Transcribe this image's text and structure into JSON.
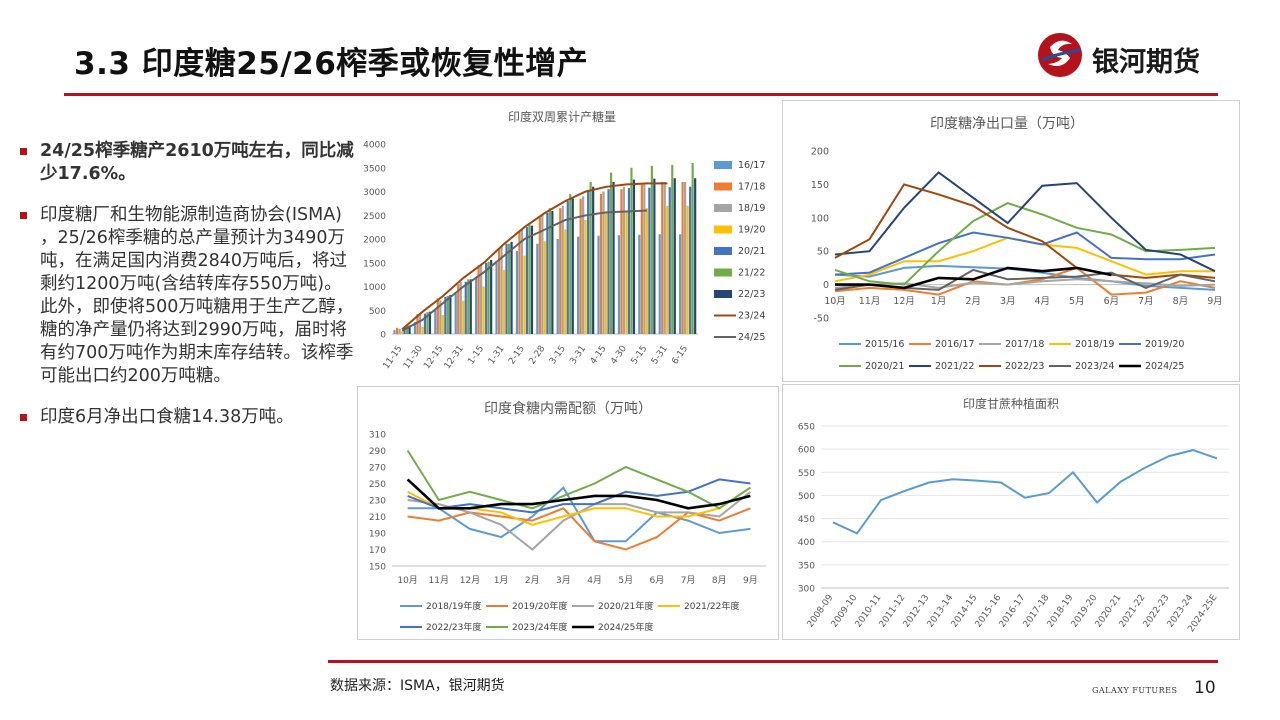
{
  "header": {
    "title": "3.3 印度糖25/26榨季或恢复性增产",
    "logo_text": "银河期货"
  },
  "bullets": [
    "24/25榨季糖产2610万吨左右，同比减少17.6%。",
    "印度糖厂和生物能源制造商协会(ISMA) ，25/26榨季糖的总产量预计为3490万吨，在满足国内消费2840万吨后，将过剩约1200万吨(含结转库存550万吨)。此外，即使将500万吨糖用于生产乙醇，糖的净产量仍将达到2990万吨，届时将有约700万吨作为期末库存结转。该榨季可能出口约200万吨糖。",
    "印度6月净出口食糖14.38万吨。"
  ],
  "footer": {
    "source": "数据来源：ISMA，银河期货",
    "brand": "GALAXY FUTURES",
    "page": "10"
  },
  "chart_data": [
    {
      "type": "bar",
      "title": "印度双周累计产糖量",
      "xlabel": "",
      "ylabel": "",
      "ylim": [
        0,
        4000
      ],
      "yticks": [
        0,
        500,
        1000,
        1500,
        2000,
        2500,
        3000,
        3500,
        4000
      ],
      "categories": [
        "11-15",
        "11-30",
        "12-15",
        "12-31",
        "1-15",
        "1-31",
        "2-15",
        "2-28",
        "3-15",
        "3-31",
        "4-15",
        "4-30",
        "5-15",
        "5-31",
        "6-15"
      ],
      "legend_position": "right",
      "series": [
        {
          "name": "16/17",
          "type": "bar",
          "color": "#5b9bd5",
          "values": [
            80,
            250,
            500,
            850,
            1200,
            1500,
            1750,
            1900,
            2000,
            2050,
            2070,
            2080,
            2090,
            2100,
            2100
          ]
        },
        {
          "name": "17/18",
          "type": "bar",
          "color": "#ed7d31",
          "values": [
            130,
            420,
            750,
            1050,
            1450,
            1800,
            2150,
            2450,
            2650,
            2850,
            2950,
            3050,
            3150,
            3200,
            3200
          ]
        },
        {
          "name": "18/19",
          "type": "bar",
          "color": "#a5a5a5",
          "values": [
            110,
            400,
            710,
            1100,
            1480,
            1850,
            2200,
            2500,
            2700,
            2900,
            3000,
            3100,
            3150,
            3200,
            3200
          ]
        },
        {
          "name": "19/20",
          "type": "bar",
          "color": "#ffc000",
          "values": [
            50,
            150,
            400,
            700,
            1000,
            1350,
            1650,
            1950,
            2200,
            2400,
            2550,
            2600,
            2650,
            2700,
            2700
          ]
        },
        {
          "name": "20/21",
          "type": "bar",
          "color": "#4472c4",
          "values": [
            140,
            430,
            780,
            1100,
            1500,
            1900,
            2250,
            2550,
            2800,
            3000,
            3050,
            3070,
            3080,
            3090,
            3100
          ]
        },
        {
          "name": "21/22",
          "type": "bar",
          "color": "#70ad47",
          "values": [
            180,
            460,
            800,
            1150,
            1520,
            1900,
            2300,
            2650,
            2950,
            3200,
            3400,
            3500,
            3540,
            3560,
            3600
          ]
        },
        {
          "name": "22/23",
          "type": "bar",
          "color": "#264478",
          "values": [
            180,
            470,
            820,
            1150,
            1560,
            1940,
            2280,
            2590,
            2850,
            3100,
            3200,
            3250,
            3270,
            3280,
            3280
          ]
        },
        {
          "name": "23/24",
          "type": "line",
          "color": "#9e480e",
          "values": [
            100,
            470,
            800,
            1180,
            1500,
            1900,
            2250,
            2550,
            2800,
            3000,
            3100,
            3150,
            3170,
            3170,
            null
          ]
        },
        {
          "name": "24/25",
          "type": "line",
          "color": "#636363",
          "values": [
            70,
            300,
            650,
            1000,
            1300,
            1650,
            2000,
            2200,
            2400,
            2500,
            2560,
            2580,
            2600,
            null,
            null
          ]
        }
      ]
    },
    {
      "type": "line",
      "title": "印度糖净出口量（万吨）",
      "xlabel": "",
      "ylabel": "",
      "ylim": [
        -50,
        200
      ],
      "yticks": [
        -50,
        0,
        50,
        100,
        150,
        200
      ],
      "categories": [
        "10月",
        "11月",
        "12月",
        "1月",
        "2月",
        "3月",
        "4月",
        "5月",
        "6月",
        "7月",
        "8月",
        "9月"
      ],
      "legend_position": "bottom",
      "series": [
        {
          "name": "2015/16",
          "color": "#5b9bd5",
          "values": [
            15,
            12,
            25,
            28,
            26,
            24,
            18,
            10,
            5,
            -2,
            -5,
            -8
          ]
        },
        {
          "name": "2016/17",
          "color": "#ed7d31",
          "values": [
            -10,
            -5,
            -8,
            -15,
            5,
            0,
            8,
            25,
            -15,
            -12,
            5,
            -5
          ]
        },
        {
          "name": "2017/18",
          "color": "#a5a5a5",
          "values": [
            -5,
            0,
            2,
            -5,
            3,
            0,
            5,
            8,
            5,
            2,
            -2,
            0
          ]
        },
        {
          "name": "2018/19",
          "color": "#ffc000",
          "values": [
            5,
            15,
            35,
            35,
            50,
            70,
            60,
            55,
            35,
            15,
            20,
            20
          ]
        },
        {
          "name": "2019/20",
          "color": "#4472c4",
          "values": [
            15,
            18,
            40,
            62,
            78,
            70,
            60,
            78,
            40,
            38,
            38,
            45
          ]
        },
        {
          "name": "2020/21",
          "color": "#70ad47",
          "values": [
            22,
            5,
            0,
            50,
            95,
            122,
            105,
            85,
            75,
            50,
            52,
            55
          ]
        },
        {
          "name": "2021/22",
          "color": "#264478",
          "values": [
            45,
            50,
            115,
            168,
            130,
            92,
            148,
            152,
            100,
            52,
            45,
            20
          ]
        },
        {
          "name": "2022/23",
          "color": "#9e480e",
          "values": [
            40,
            68,
            150,
            135,
            118,
            85,
            65,
            25,
            15,
            10,
            15,
            10
          ]
        },
        {
          "name": "2023/24",
          "color": "#636363",
          "values": [
            -8,
            0,
            -5,
            -8,
            22,
            8,
            10,
            12,
            18,
            -5,
            15,
            5
          ]
        },
        {
          "name": "2024/25",
          "color": "#000000",
          "values": [
            0,
            0,
            -5,
            10,
            8,
            25,
            20,
            25,
            14.38,
            null,
            null,
            null
          ]
        }
      ]
    },
    {
      "type": "line",
      "title": "印度食糖内需配额（万吨）",
      "xlabel": "",
      "ylabel": "",
      "ylim": [
        150,
        310
      ],
      "yticks": [
        150,
        170,
        190,
        210,
        230,
        250,
        270,
        290,
        310
      ],
      "categories": [
        "10月",
        "11月",
        "12月",
        "1月",
        "2月",
        "3月",
        "4月",
        "5月",
        "6月",
        "7月",
        "8月",
        "9月"
      ],
      "legend_position": "bottom",
      "series": [
        {
          "name": "2018/19年度",
          "color": "#5b9bd5",
          "values": [
            220,
            220,
            195,
            185,
            210,
            245,
            180,
            180,
            215,
            205,
            190,
            195
          ]
        },
        {
          "name": "2019/20年度",
          "color": "#ed7d31",
          "values": [
            210,
            205,
            215,
            210,
            205,
            220,
            180,
            170,
            185,
            215,
            205,
            220
          ]
        },
        {
          "name": "2020/21年度",
          "color": "#a5a5a5",
          "values": [
            230,
            225,
            215,
            200,
            170,
            205,
            225,
            225,
            215,
            215,
            210,
            240
          ]
        },
        {
          "name": "2021/22年度",
          "color": "#ffc000",
          "values": [
            240,
            220,
            220,
            215,
            200,
            210,
            220,
            220,
            210,
            210,
            220,
            245
          ]
        },
        {
          "name": "2022/23年度",
          "color": "#4472c4",
          "values": [
            235,
            220,
            225,
            220,
            215,
            225,
            225,
            240,
            235,
            240,
            255,
            250
          ]
        },
        {
          "name": "2023/24年度",
          "color": "#70ad47",
          "values": [
            290,
            230,
            240,
            230,
            220,
            235,
            250,
            270,
            255,
            240,
            220,
            245
          ]
        },
        {
          "name": "2024/25年度",
          "color": "#000000",
          "values": [
            255,
            220,
            220,
            225,
            225,
            230,
            235,
            235,
            230,
            220,
            225,
            235
          ]
        }
      ]
    },
    {
      "type": "line",
      "title": "印度甘蔗种植面积",
      "xlabel": "",
      "ylabel": "",
      "ylim": [
        300,
        650
      ],
      "yticks": [
        300,
        350,
        400,
        450,
        500,
        550,
        600,
        650
      ],
      "categories": [
        "2008-09",
        "2009-10",
        "2010-11",
        "2011-12",
        "2012-13",
        "2013-14",
        "2014-15",
        "2015-16",
        "2016-17",
        "2017-18",
        "2018-19",
        "2019-20",
        "2020-21",
        "2021-22",
        "2022-23",
        "2023-24",
        "2024-25E"
      ],
      "series": [
        {
          "name": "",
          "color": "#5b9bd5",
          "values": [
            442,
            418,
            490,
            510,
            528,
            535,
            532,
            528,
            495,
            505,
            550,
            485,
            530,
            560,
            585,
            598,
            580
          ]
        }
      ]
    }
  ]
}
